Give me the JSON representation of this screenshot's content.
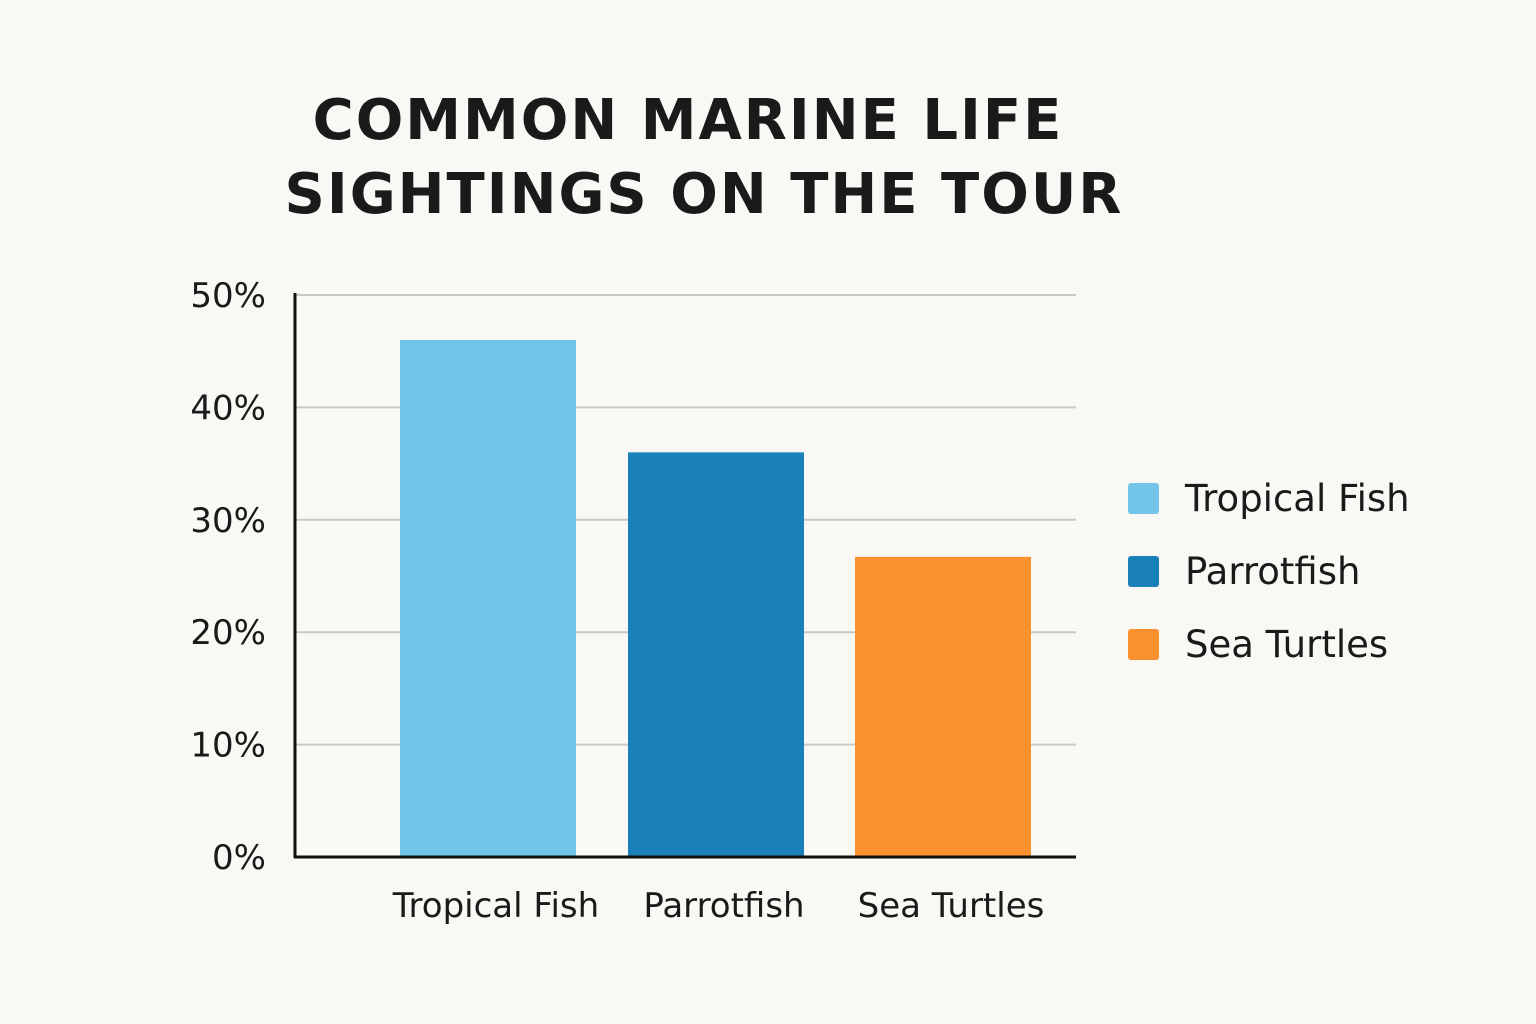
{
  "chart_data": {
    "type": "bar",
    "title_lines": [
      "COMMON MARINE LIFE",
      "SIGHTINGS ON THE TOUR"
    ],
    "categories": [
      "Tropical Fish",
      "Parrotfish",
      "Sea Turtles"
    ],
    "values": [
      46,
      36,
      26.7
    ],
    "colors": [
      "#72c5e8",
      "#1a80b9",
      "#fb902e"
    ],
    "ylim": [
      0,
      50
    ],
    "yticks": [
      0,
      10,
      20,
      30,
      40,
      50
    ],
    "ytick_labels": [
      "0%",
      "10%",
      "20%",
      "30%",
      "40%",
      "50%"
    ],
    "grid": true,
    "legend": {
      "placement": "right",
      "entries": [
        "Tropical Fish",
        "Parrotfish",
        "Sea Turtles"
      ]
    }
  }
}
